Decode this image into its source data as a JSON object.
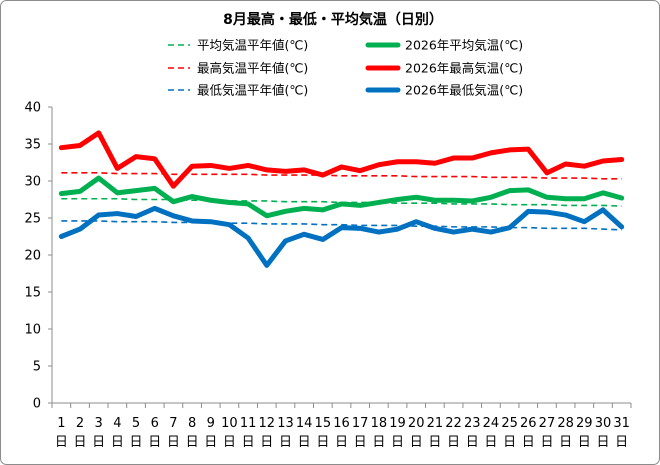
{
  "chart_data": {
    "type": "line",
    "title": "8月最高・最低・平均気温（日別）",
    "categories": [
      "1",
      "2",
      "3",
      "4",
      "5",
      "6",
      "7",
      "8",
      "9",
      "10",
      "11",
      "12",
      "13",
      "14",
      "15",
      "16",
      "17",
      "18",
      "19",
      "20",
      "21",
      "22",
      "23",
      "24",
      "25",
      "26",
      "27",
      "28",
      "29",
      "30",
      "31"
    ],
    "category_suffix": "日",
    "ylim": [
      0,
      40
    ],
    "yticks": [
      0,
      5,
      10,
      15,
      20,
      25,
      30,
      35,
      40
    ],
    "grid": false,
    "legend_position": "top",
    "series": [
      {
        "name": "平均気温平年値(℃)",
        "color": "#00b050",
        "style": "dashed",
        "values": [
          27.6,
          27.6,
          27.6,
          27.6,
          27.5,
          27.5,
          27.5,
          27.4,
          27.4,
          27.3,
          27.3,
          27.3,
          27.2,
          27.2,
          27.2,
          27.1,
          27.1,
          27.1,
          27.0,
          27.0,
          27.0,
          26.9,
          26.9,
          26.9,
          26.8,
          26.8,
          26.8,
          26.7,
          26.7,
          26.7,
          26.6
        ]
      },
      {
        "name": "2026年平均気温(℃)",
        "color": "#00b050",
        "style": "solid",
        "values": [
          28.3,
          28.6,
          30.4,
          28.4,
          28.7,
          29.0,
          27.2,
          27.9,
          27.4,
          27.1,
          26.9,
          25.3,
          25.9,
          26.3,
          26.1,
          26.9,
          26.7,
          27.1,
          27.5,
          27.8,
          27.4,
          27.4,
          27.3,
          27.8,
          28.7,
          28.8,
          27.8,
          27.6,
          27.6,
          28.4,
          27.7
        ]
      },
      {
        "name": "最高気温平年値(℃)",
        "color": "#ff0000",
        "style": "dashed",
        "values": [
          31.1,
          31.1,
          31.1,
          31.0,
          31.0,
          31.0,
          30.9,
          30.9,
          30.9,
          30.9,
          30.9,
          30.8,
          30.8,
          30.8,
          30.8,
          30.7,
          30.7,
          30.7,
          30.7,
          30.6,
          30.6,
          30.6,
          30.6,
          30.5,
          30.5,
          30.5,
          30.4,
          30.4,
          30.4,
          30.3,
          30.3
        ]
      },
      {
        "name": "2026年最高気温(℃)",
        "color": "#ff0000",
        "style": "solid",
        "values": [
          34.5,
          34.8,
          36.5,
          31.7,
          33.3,
          33.0,
          29.3,
          32.0,
          32.1,
          31.7,
          32.1,
          31.5,
          31.3,
          31.5,
          30.8,
          31.9,
          31.4,
          32.2,
          32.6,
          32.6,
          32.4,
          33.1,
          33.1,
          33.8,
          34.2,
          34.3,
          31.1,
          32.3,
          32.0,
          32.7,
          32.9
        ]
      },
      {
        "name": "最低気温平年値(℃)",
        "color": "#0070c0",
        "style": "dashed",
        "values": [
          24.6,
          24.6,
          24.6,
          24.5,
          24.5,
          24.5,
          24.4,
          24.4,
          24.4,
          24.3,
          24.3,
          24.2,
          24.2,
          24.2,
          24.1,
          24.1,
          24.0,
          24.0,
          24.0,
          23.9,
          23.9,
          23.8,
          23.8,
          23.8,
          23.7,
          23.7,
          23.6,
          23.6,
          23.6,
          23.5,
          23.4
        ]
      },
      {
        "name": "2026年最低気温(℃)",
        "color": "#0070c0",
        "style": "solid",
        "values": [
          22.5,
          23.5,
          25.4,
          25.6,
          25.2,
          26.3,
          25.3,
          24.6,
          24.5,
          24.1,
          22.3,
          18.6,
          21.9,
          22.8,
          22.1,
          23.7,
          23.6,
          23.1,
          23.5,
          24.5,
          23.6,
          23.1,
          23.5,
          23.1,
          23.7,
          25.9,
          25.8,
          25.4,
          24.5,
          26.1,
          23.8
        ]
      }
    ]
  }
}
